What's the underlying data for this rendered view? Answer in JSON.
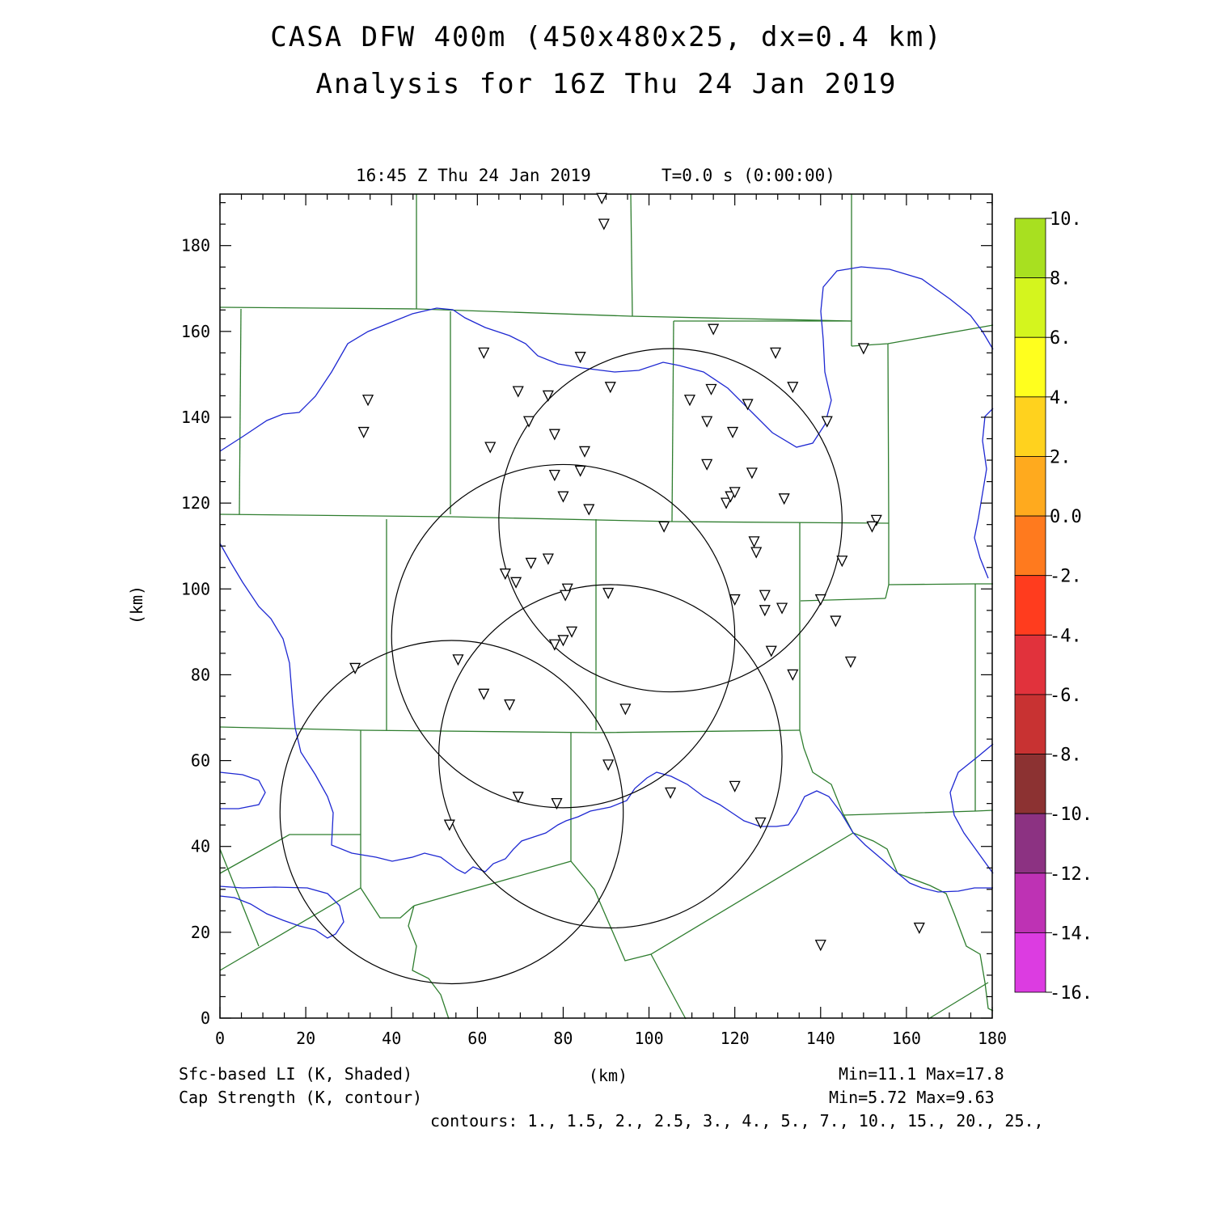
{
  "title": {
    "line1": "CASA DFW 400m (450x480x25, dx=0.4 km)",
    "line2": "Analysis for 16Z Thu 24 Jan 2019"
  },
  "subtitle": {
    "time": "16:45 Z Thu 24 Jan 2019",
    "runtime": "T=0.0 s (0:00:00)"
  },
  "axes": {
    "xlabel": "(km)",
    "ylabel": "(km)",
    "xlim": [
      0,
      180
    ],
    "ylim": [
      0,
      192
    ],
    "xticks": [
      "0",
      "20",
      "40",
      "60",
      "80",
      "100",
      "120",
      "140",
      "160",
      "180"
    ],
    "yticks": [
      "0",
      "20",
      "40",
      "60",
      "80",
      "100",
      "120",
      "140",
      "160",
      "180"
    ]
  },
  "colorbar": {
    "labels": [
      "10.",
      "8.",
      "6.",
      "4.",
      "2.",
      "0.0",
      "-2.",
      "-4.",
      "-6.",
      "-8.",
      "-10.",
      "-12.",
      "-14.",
      "-16."
    ],
    "colors": [
      "#a8e020",
      "#d4f51e",
      "#ffff1e",
      "#ffd21e",
      "#ffaa1e",
      "#ff7a1e",
      "#ff3c1e",
      "#e1323c",
      "#c83232",
      "#8c3232",
      "#8c3282",
      "#be32b4",
      "#dc3ce1"
    ]
  },
  "footer": {
    "field1": "Sfc-based LI (K, Shaded)",
    "field2": "Cap Strength (K, contour)",
    "xunit": "(km)",
    "minmax1": "Min=11.1 Max=17.8",
    "minmax2": "Min=5.72 Max=9.63",
    "contours": "contours: 1., 1.5, 2., 2.5, 3., 4., 5., 7., 10., 15., 20., 25.,"
  },
  "chart_data": {
    "type": "map",
    "radar_rings_km": [
      {
        "cx": 105,
        "cy": 116,
        "r": 40
      },
      {
        "cx": 80,
        "cy": 89,
        "r": 40
      },
      {
        "cx": 91,
        "cy": 61,
        "r": 40
      },
      {
        "cx": 54,
        "cy": 48,
        "r": 40
      }
    ],
    "stations_km": [
      [
        89,
        191
      ],
      [
        89.5,
        185
      ],
      [
        61.5,
        155
      ],
      [
        84,
        154
      ],
      [
        91,
        147
      ],
      [
        115,
        160.5
      ],
      [
        129.5,
        155
      ],
      [
        150,
        156
      ],
      [
        34.5,
        144
      ],
      [
        33.5,
        136.5
      ],
      [
        69.5,
        146
      ],
      [
        76.5,
        145
      ],
      [
        72,
        139
      ],
      [
        78,
        136
      ],
      [
        63,
        133
      ],
      [
        85,
        132
      ],
      [
        84,
        127.5
      ],
      [
        78,
        126.5
      ],
      [
        80,
        121.5
      ],
      [
        86,
        118.5
      ],
      [
        109.5,
        144
      ],
      [
        114.5,
        146.5
      ],
      [
        113.5,
        139
      ],
      [
        119.5,
        136.5
      ],
      [
        123,
        143
      ],
      [
        133.5,
        147
      ],
      [
        141.5,
        139
      ],
      [
        113.5,
        129
      ],
      [
        118,
        120
      ],
      [
        119,
        121.5
      ],
      [
        120,
        122.5
      ],
      [
        124,
        127
      ],
      [
        131.5,
        121
      ],
      [
        153,
        116
      ],
      [
        152,
        114.5
      ],
      [
        103.5,
        114.5
      ],
      [
        124.5,
        111
      ],
      [
        125,
        108.5
      ],
      [
        145,
        106.5
      ],
      [
        66.5,
        103.5
      ],
      [
        69,
        101.5
      ],
      [
        72.5,
        106
      ],
      [
        76.5,
        107
      ],
      [
        81,
        100
      ],
      [
        80.5,
        98.5
      ],
      [
        90.5,
        99
      ],
      [
        120,
        97.5
      ],
      [
        127,
        98.5
      ],
      [
        127,
        95
      ],
      [
        131,
        95.5
      ],
      [
        140,
        97.5
      ],
      [
        143.5,
        92.5
      ],
      [
        128.5,
        85.5
      ],
      [
        133.5,
        80
      ],
      [
        147,
        83
      ],
      [
        55.5,
        83.5
      ],
      [
        31.5,
        81.5
      ],
      [
        78,
        87
      ],
      [
        80,
        88
      ],
      [
        82,
        90
      ],
      [
        61.5,
        75.5
      ],
      [
        67.5,
        73
      ],
      [
        94.5,
        72
      ],
      [
        90.5,
        59
      ],
      [
        120,
        54
      ],
      [
        105,
        52.5
      ],
      [
        69.5,
        51.5
      ],
      [
        78.5,
        50
      ],
      [
        126,
        45.5
      ],
      [
        53.5,
        45
      ],
      [
        163,
        21
      ],
      [
        140,
        17
      ]
    ]
  }
}
